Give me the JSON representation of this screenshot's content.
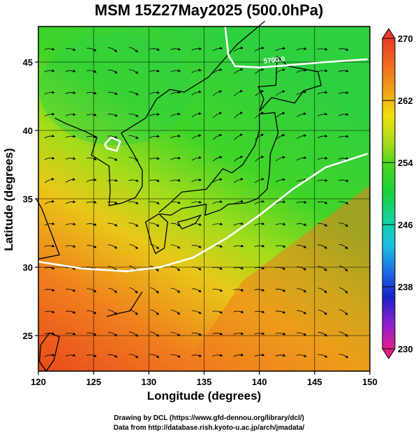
{
  "chart_data": {
    "type": "heatmap",
    "title": "MSM 15Z27May2025 (500.0hPa)",
    "xlabel": "Longitude (degrees)",
    "ylabel": "Latitude  (degrees)",
    "xlim": [
      120,
      150
    ],
    "ylim": [
      22.4,
      47.6
    ],
    "x_ticks": [
      "120",
      "125",
      "130",
      "135",
      "140",
      "145",
      "150"
    ],
    "y_ticks": [
      "25",
      "30",
      "35",
      "40",
      "45"
    ],
    "x_tick_values": [
      120,
      125,
      130,
      135,
      140,
      145,
      150
    ],
    "y_tick_values": [
      25,
      30,
      35,
      40,
      45
    ],
    "grid": true,
    "colorbar": {
      "min": 230,
      "max": 270,
      "labels": [
        "270",
        "262",
        "254",
        "246",
        "238",
        "230"
      ],
      "label_values": [
        270,
        262,
        254,
        246,
        238,
        230
      ],
      "colors": [
        "#e0208a",
        "#8a1fd0",
        "#1c20c8",
        "#1e6ce6",
        "#18c0e0",
        "#14d49c",
        "#18d040",
        "#44d420",
        "#a8dc18",
        "#f0e010",
        "#f0a018",
        "#f06a20",
        "#e83a28"
      ]
    },
    "contours": [
      {
        "label": "5700.0",
        "lon": [
          136.9,
          137.2,
          137.8,
          140,
          143,
          146,
          149.8
        ],
        "lat": [
          47.6,
          45.5,
          44.7,
          44.6,
          44.8,
          45.0,
          45.2
        ]
      },
      {
        "label": "",
        "lon": [
          120,
          124,
          128,
          131,
          134,
          137,
          140,
          143,
          146,
          149.8
        ],
        "lat": [
          30.4,
          29.9,
          29.7,
          30.0,
          30.7,
          32.1,
          33.8,
          35.7,
          37.3,
          38.3
        ]
      },
      {
        "label": "",
        "lon": [
          126.0,
          126.6,
          127.4,
          127.1,
          126.2,
          126.0
        ],
        "lat": [
          39.0,
          39.5,
          39.2,
          38.5,
          38.7,
          39.0
        ]
      }
    ]
  },
  "credits": {
    "line1": "Drawing by DCL (https://www.gfd-dennou.org/library/dcl/)",
    "line2": "Data from http://database.rish.kyoto-u.ac.jp/arch/jmadata/"
  }
}
